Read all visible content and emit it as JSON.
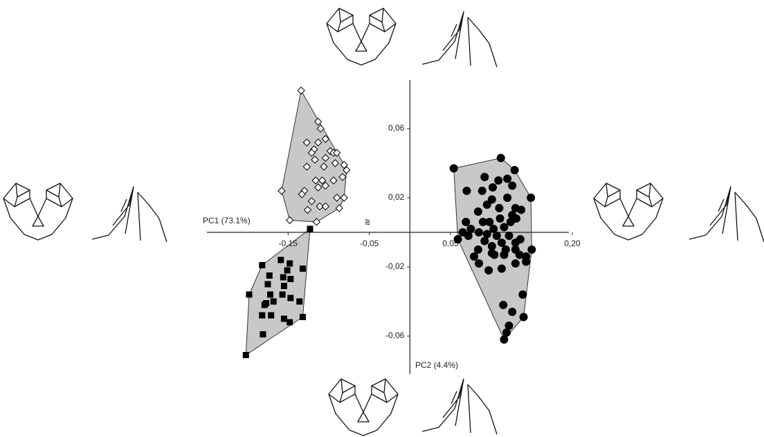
{
  "chart_data": {
    "type": "scatter",
    "x_label": "PC1 (73.1%)",
    "y_label": "PC2 (4.4%)",
    "annotation": "ar",
    "xlim": [
      -0.25,
      0.2
    ],
    "ylim": [
      -0.082,
      0.088
    ],
    "xticks": [
      {
        "value": -0.15,
        "label": "-0,15"
      },
      {
        "value": -0.05,
        "label": "-0,05"
      },
      {
        "value": 0.05,
        "label": "0,05"
      },
      {
        "value": 0.2,
        "label": "0,20"
      }
    ],
    "yticks": [
      {
        "value": 0.06,
        "label": "0,06"
      },
      {
        "value": 0.02,
        "label": "0,02"
      },
      {
        "value": -0.02,
        "label": "-0,02"
      },
      {
        "value": -0.06,
        "label": "-0,06"
      }
    ],
    "convex_hulls": true,
    "series": [
      {
        "marker": "diamond",
        "color": "#ffffff",
        "x": [
          -0.134,
          -0.113,
          -0.11,
          -0.127,
          -0.113,
          -0.104,
          -0.118,
          -0.121,
          -0.098,
          -0.094,
          -0.09,
          -0.117,
          -0.104,
          -0.127,
          -0.106,
          -0.081,
          -0.078,
          -0.092,
          -0.116,
          -0.108,
          -0.094,
          -0.083,
          -0.113,
          -0.104,
          -0.158,
          -0.13,
          -0.133,
          -0.09,
          -0.081,
          -0.121,
          -0.111,
          -0.104,
          -0.126,
          -0.087,
          -0.148,
          -0.115
        ],
        "values": [
          0.082,
          0.064,
          0.06,
          0.052,
          0.052,
          0.054,
          0.048,
          0.046,
          0.047,
          0.046,
          0.046,
          0.042,
          0.043,
          0.038,
          0.038,
          0.039,
          0.036,
          0.04,
          0.03,
          0.03,
          0.03,
          0.032,
          0.026,
          0.027,
          0.024,
          0.024,
          0.022,
          0.02,
          0.02,
          0.018,
          0.015,
          0.015,
          0.013,
          0.014,
          0.007,
          0.006
        ]
      },
      {
        "marker": "square",
        "color": "#000000",
        "x": [
          -0.182,
          -0.159,
          -0.148,
          -0.132,
          -0.173,
          -0.151,
          -0.156,
          -0.147,
          -0.175,
          -0.155,
          -0.198,
          -0.172,
          -0.157,
          -0.147,
          -0.177,
          -0.168,
          -0.179,
          -0.136,
          -0.182,
          -0.171,
          -0.155,
          -0.132,
          -0.148,
          -0.181,
          -0.202,
          -0.123
        ],
        "values": [
          -0.019,
          -0.016,
          -0.018,
          -0.021,
          -0.025,
          -0.022,
          -0.026,
          -0.027,
          -0.03,
          -0.031,
          -0.036,
          -0.036,
          -0.036,
          -0.038,
          -0.041,
          -0.04,
          -0.042,
          -0.04,
          -0.048,
          -0.048,
          -0.05,
          -0.049,
          -0.052,
          -0.059,
          -0.071,
          0.002
        ]
      },
      {
        "marker": "circle",
        "color": "#000000",
        "x": [
          0.054,
          0.112,
          0.129,
          0.092,
          0.109,
          0.12,
          0.07,
          0.089,
          0.102,
          0.126,
          0.149,
          0.101,
          0.12,
          0.095,
          0.11,
          0.13,
          0.137,
          0.084,
          0.126,
          0.131,
          0.069,
          0.098,
          0.111,
          0.124,
          0.075,
          0.103,
          0.116,
          0.085,
          0.095,
          0.107,
          0.122,
          0.136,
          0.059,
          0.072,
          0.113,
          0.13,
          0.092,
          0.15,
          0.084,
          0.101,
          0.118,
          0.13,
          0.079,
          0.104,
          0.116,
          0.135,
          0.143,
          0.085,
          0.13,
          0.097,
          0.113,
          0.139,
          0.115,
          0.126,
          0.14,
          0.119,
          0.116,
          0.122,
          0.101,
          0.065,
          0.09,
          0.143
        ],
        "values": [
          0.037,
          0.043,
          0.036,
          0.032,
          0.03,
          0.031,
          0.024,
          0.024,
          0.026,
          0.027,
          0.02,
          0.019,
          0.02,
          0.016,
          0.014,
          0.014,
          0.013,
          0.012,
          0.01,
          0.008,
          0.006,
          0.006,
          0.008,
          0.006,
          0.002,
          0.002,
          0.003,
          0.0,
          -0.001,
          -0.002,
          -0.002,
          -0.004,
          -0.004,
          -0.002,
          -0.006,
          -0.006,
          -0.005,
          -0.01,
          -0.01,
          -0.008,
          -0.01,
          -0.01,
          -0.014,
          -0.013,
          -0.013,
          -0.013,
          -0.014,
          -0.018,
          -0.018,
          -0.022,
          -0.021,
          -0.036,
          -0.042,
          -0.046,
          -0.049,
          -0.058,
          -0.062,
          -0.054,
          -0.012,
          0.0,
          0.006,
          -0.017
        ]
      }
    ]
  }
}
